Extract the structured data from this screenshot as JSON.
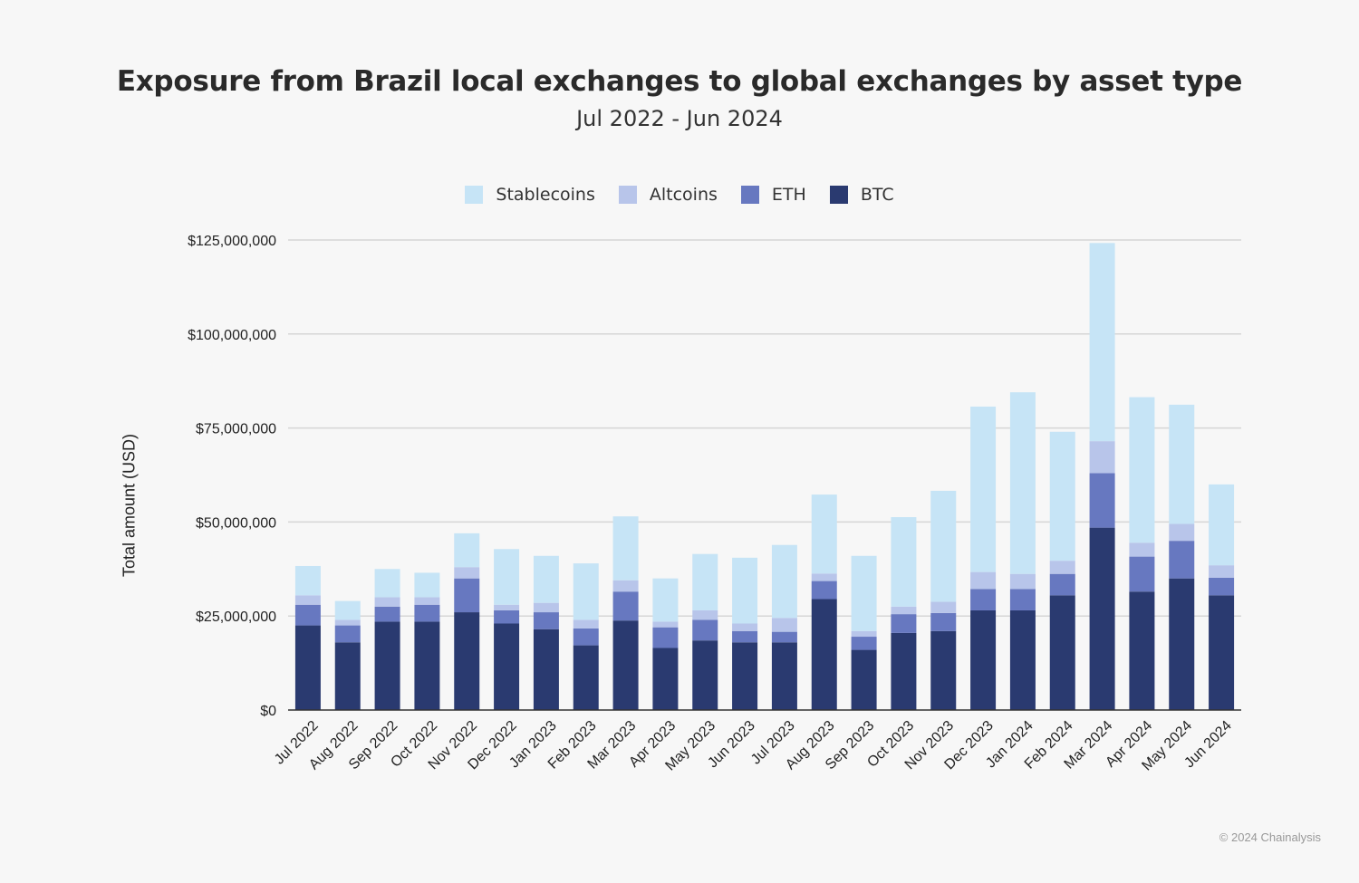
{
  "chart_data": {
    "type": "bar",
    "stacked": true,
    "title": "Exposure from Brazil local exchanges to global exchanges by asset type",
    "subtitle": "Jul 2022 - Jun 2024",
    "xlabel": "",
    "ylabel": "Total amount (USD)",
    "ylim": [
      0,
      125000000
    ],
    "yticks": [
      0,
      25000000,
      50000000,
      75000000,
      100000000,
      125000000
    ],
    "ytick_labels": [
      "$0",
      "$25,000,000",
      "$50,000,000",
      "$75,000,000",
      "$100,000,000",
      "$125,000,000"
    ],
    "grid": true,
    "legend_position": "top",
    "categories": [
      "Jul 2022",
      "Aug 2022",
      "Sep 2022",
      "Oct 2022",
      "Nov 2022",
      "Dec 2022",
      "Jan 2023",
      "Feb 2023",
      "Mar 2023",
      "Apr 2023",
      "May 2023",
      "Jun 2023",
      "Jul 2023",
      "Aug 2023",
      "Sep 2023",
      "Oct 2023",
      "Nov 2023",
      "Dec 2023",
      "Jan 2024",
      "Feb 2024",
      "Mar 2024",
      "Apr 2024",
      "May 2024",
      "Jun 2024"
    ],
    "series": [
      {
        "name": "BTC",
        "color": "#2a3a70",
        "values": [
          22500000,
          18000000,
          23500000,
          23500000,
          26000000,
          23000000,
          21500000,
          17200000,
          23800000,
          16500000,
          18500000,
          18000000,
          18000000,
          29500000,
          16000000,
          20500000,
          21000000,
          26500000,
          26500000,
          30500000,
          48500000,
          31500000,
          35000000,
          30500000
        ]
      },
      {
        "name": "ETH",
        "color": "#6778c0",
        "values": [
          5500000,
          4500000,
          4000000,
          4500000,
          9000000,
          3500000,
          4500000,
          4500000,
          7700000,
          5500000,
          5500000,
          3000000,
          2800000,
          4800000,
          3500000,
          5000000,
          4800000,
          5700000,
          5700000,
          5700000,
          14500000,
          9300000,
          10000000,
          4700000
        ]
      },
      {
        "name": "Altcoins",
        "color": "#b8c5ea",
        "values": [
          2500000,
          1500000,
          2500000,
          2000000,
          3000000,
          1500000,
          2500000,
          2300000,
          3000000,
          1500000,
          2500000,
          2000000,
          3700000,
          2000000,
          1500000,
          2000000,
          3000000,
          4500000,
          4000000,
          3500000,
          8500000,
          3700000,
          4500000,
          3300000
        ]
      },
      {
        "name": "Stablecoins",
        "color": "#c6e4f6",
        "values": [
          7800000,
          5000000,
          7500000,
          6500000,
          9000000,
          14800000,
          12500000,
          15000000,
          17000000,
          11500000,
          15000000,
          17500000,
          19400000,
          21000000,
          20000000,
          23800000,
          29500000,
          44000000,
          48300000,
          34300000,
          52700000,
          38700000,
          31700000,
          21500000
        ]
      }
    ],
    "legend_order": [
      "Stablecoins",
      "Altcoins",
      "ETH",
      "BTC"
    ]
  },
  "footer": "© 2024 Chainalysis"
}
